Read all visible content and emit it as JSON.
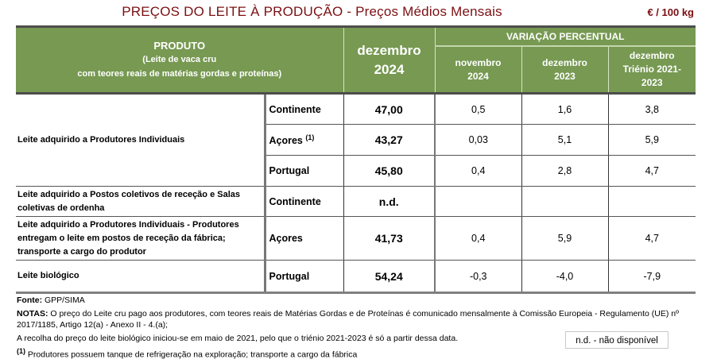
{
  "title": "PREÇOS DO LEITE À PRODUÇÃO - Preços Médios Mensais",
  "unit": "€ / 100 kg",
  "header": {
    "produto": "PRODUTO",
    "produto_sub1": "(Leite de vaca cru",
    "produto_sub2": "com teores reais de matérias gordas e proteínas)",
    "current_month": "dezembro",
    "current_year": "2024",
    "variacao": "VARIAÇÃO PERCENTUAL",
    "cols": [
      {
        "line1": "novembro",
        "line2": "2024"
      },
      {
        "line1": "dezembro",
        "line2": "2023"
      },
      {
        "line1": "dezembro",
        "line2": "Triénio 2021-",
        "line3": "2023"
      }
    ]
  },
  "rows": [
    {
      "product": "Leite adquirido a Produtores Individuais",
      "region": "Continente",
      "value": "47,00",
      "v1": "0,5",
      "v2": "1,6",
      "v3": "3,8"
    },
    {
      "region": "Açores",
      "region_note": "(1)",
      "value": "43,27",
      "v1": "0,03",
      "v2": "5,1",
      "v3": "5,9"
    },
    {
      "region": "Portugal",
      "value": "45,80",
      "v1": "0,4",
      "v2": "2,8",
      "v3": "4,7"
    },
    {
      "product": "Leite adquirido a Postos coletivos de receção e Salas coletivas de ordenha",
      "region": "Continente",
      "value": "n.d.",
      "v1": "",
      "v2": "",
      "v3": ""
    },
    {
      "product": "Leite adquirido a Produtores Individuais - Produtores entregam o leite em postos de receção da fábrica; transporte a cargo do produtor",
      "region": "Açores",
      "value": "41,73",
      "v1": "0,4",
      "v2": "5,9",
      "v3": "4,7"
    },
    {
      "product": "Leite biológico",
      "region": "Portugal",
      "value": "54,24",
      "v1": "-0,3",
      "v2": "-4,0",
      "v3": "-7,9"
    }
  ],
  "footer": {
    "fonte_label": "Fonte:",
    "fonte": " GPP/SIMA",
    "notas_label": "NOTAS:",
    "notas1": " O preço do Leite cru pago aos produtores, com teores reais de Matérias Gordas e de Proteínas é comunicado mensalmente à Comissão Europeia - Regulamento (UE) nº",
    "notas2": "2017/1185, Artigo 12(a) - Anexo II - 4.(a);",
    "notas3": "A recolha do preço do leite biológico iniciou-se em maio de 2021, pelo que o triénio 2021-2023 é só a partir dessa data.",
    "note1_mark": "(1)",
    "note1": " Produtores possuem tanque de refrigeração na exploração; transporte a cargo da fábrica",
    "nd_legend": "n.d. - não disponível"
  }
}
